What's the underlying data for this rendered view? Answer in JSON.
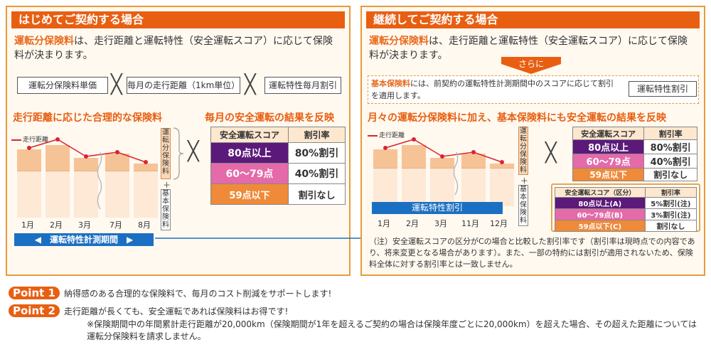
{
  "left": {
    "title": "はじめてご契約する場合",
    "desc_hl": "運転分保険料",
    "desc_rest": "は、走行距離と運転特性（安全運転スコア）に応じて保険料が決まります。",
    "box1": "運転分保険料単価",
    "box2": "毎月の走行距離（1km単位）",
    "box3": "運転特性毎月割引",
    "x_mark": "╳",
    "sub1": "走行距離に応じた合理的な保険料",
    "sub2": "毎月の安全運転の結果を反映",
    "legend": "走行距離",
    "months": [
      "1月",
      "2月",
      "3月",
      "7月",
      "8月"
    ],
    "vlabel1": "運転分保険料",
    "plus": "＋",
    "vlabel2": "基本保険料",
    "table_head": [
      "安全運転スコア",
      "割引率"
    ],
    "table_rows": [
      [
        "80点以上",
        "80%割引"
      ],
      [
        "60〜79点",
        "40%割引"
      ],
      [
        "59点以下",
        "割引なし"
      ]
    ],
    "period": "◀　運転特性計測期間　▶"
  },
  "right": {
    "title": "継続してご契約する場合",
    "desc_hl": "運転分保険料",
    "desc_rest": "は、走行距離と運転特性（安全運転スコア）に応じて保険料が決まります。",
    "sarani": "さらに",
    "base_hl": "基本保険料",
    "base_rest": "には、前契約の運転特性計測期間中のスコアに応じて割引を適用します。",
    "base_box": "運転特性割引",
    "sub": "月々の運転分保険料に加え、基本保険料にも安全運転の結果を反映",
    "legend": "走行距離",
    "months": [
      "1月",
      "2月",
      "3月",
      "11月",
      "12月"
    ],
    "bluebar": "運転特性割引",
    "table_head": [
      "安全運転スコア",
      "割引率"
    ],
    "table_rows": [
      [
        "80点以上",
        "80%割引"
      ],
      [
        "60〜79点",
        "40%割引"
      ],
      [
        "59点以下",
        "割引なし"
      ]
    ],
    "small_head": [
      "安全運転スコア（区分）",
      "割引率"
    ],
    "small_rows": [
      [
        "80点以上(A)",
        "5%割引(注)"
      ],
      [
        "60〜79点(B)",
        "3%割引(注)"
      ],
      [
        "59点以下(C)",
        "割引なし"
      ]
    ],
    "note": "（注）安全運転スコアの区分がCの場合と比較した割引率です（割引率は現時点での内容であり、将来変更となる場合があります）。また、一部の特約には割引が適用されないため、保険料全体に対する割引率とは一致しません。"
  },
  "points": [
    {
      "badge": "Point 1",
      "text": "納得感のある合理的な保険料で、毎月のコスト削減をサポートします!"
    },
    {
      "badge": "Point 2",
      "text": "走行距離が長くても、安全運転であれば保険料はお得です!"
    }
  ],
  "footnote": "※保険期間中の年間累計走行距離が20,000km（保険期間が1年を超えるご契約の場合は保険年度ごとに20,000km）を超えた場合、その超えた距離については運転分保険料を請求しません。",
  "colors": {
    "accent": "#e85f12",
    "blue": "#1b6fc2",
    "purple": "#5b1a7a",
    "pink": "#e46aa9",
    "orange": "#ef8a39"
  }
}
